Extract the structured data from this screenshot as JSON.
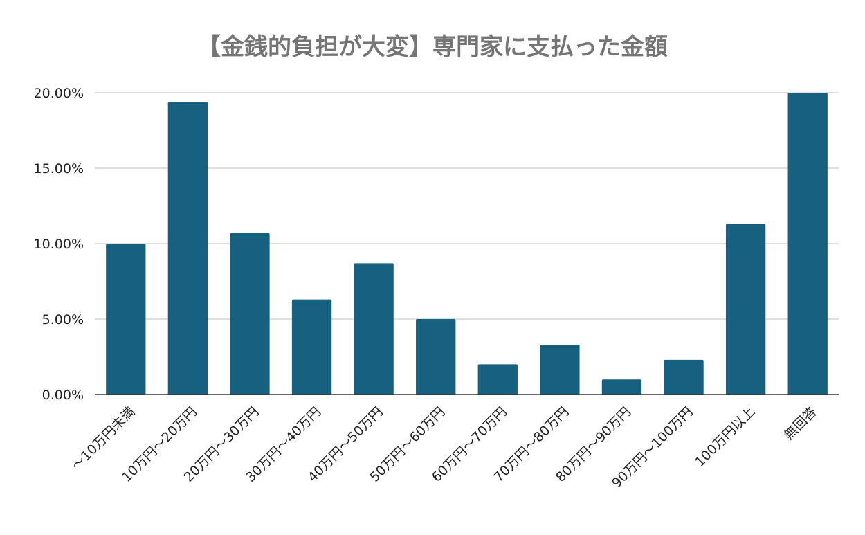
{
  "chart_data": {
    "type": "bar",
    "title": "【金銭的負担が大変】専門家に支払った金額",
    "xlabel": "",
    "ylabel": "",
    "categories": [
      "〜10万円未満",
      "10万円〜20万円",
      "20万円〜30万円",
      "30万円〜40万円",
      "40万円〜50万円",
      "50万円〜60万円",
      "60万円〜70万円",
      "70万円〜80万円",
      "80万円〜90万円",
      "90万円〜100万円",
      "100万円以上",
      "無回答"
    ],
    "values": [
      10.0,
      19.4,
      10.7,
      6.3,
      8.7,
      5.0,
      2.0,
      3.3,
      1.0,
      2.3,
      11.3,
      20.0
    ],
    "ylim": [
      0,
      20
    ],
    "yticks": [
      0,
      5,
      10,
      15,
      20
    ],
    "ytick_labels": [
      "0.00%",
      "5.00%",
      "10.00%",
      "15.00%",
      "20.00%"
    ],
    "grid": true,
    "legend": "none",
    "bar_color": "#17607f"
  }
}
